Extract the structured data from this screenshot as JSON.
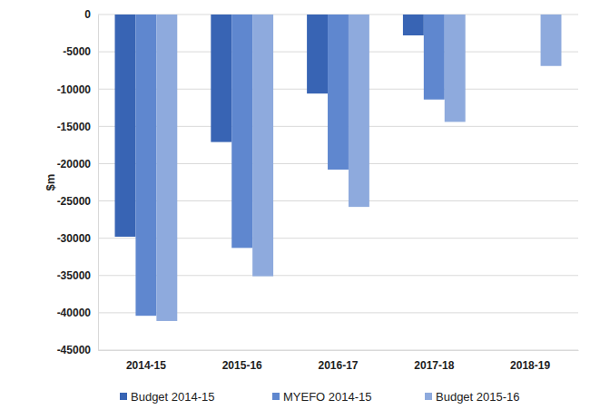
{
  "chart_data": {
    "type": "bar",
    "y_label": "$m",
    "categories": [
      "2014-15",
      "2015-16",
      "2016-17",
      "2017-18",
      "2018-19"
    ],
    "series": [
      {
        "name": "Budget 2014-15",
        "color": "#3864b4",
        "values": [
          -29800,
          -17100,
          -10600,
          -2800,
          null
        ]
      },
      {
        "name": "MYEFO 2014-15",
        "color": "#5f87cf",
        "values": [
          -40400,
          -31300,
          -20800,
          -11400,
          null
        ]
      },
      {
        "name": "Budget 2015-16",
        "color": "#8eaadd",
        "values": [
          -41100,
          -35100,
          -25800,
          -14400,
          -6900
        ]
      }
    ],
    "ylim": [
      -45000,
      0
    ],
    "yticks": [
      -45000,
      -40000,
      -35000,
      -30000,
      -25000,
      -20000,
      -15000,
      -10000,
      -5000,
      0
    ],
    "grid": true,
    "legend": "bottom"
  }
}
